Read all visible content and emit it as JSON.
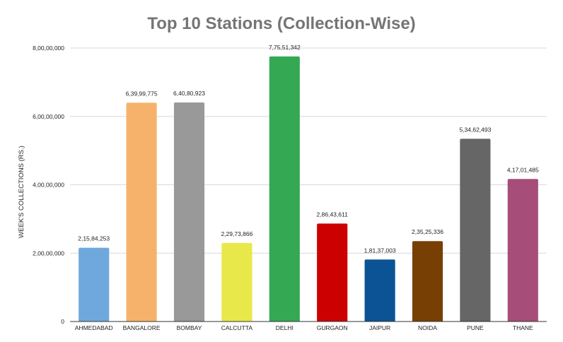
{
  "chart_data": {
    "type": "bar",
    "title": "Top 10 Stations (Collection-Wise)",
    "xlabel": "",
    "ylabel": "WEEK'S COLLECTIONS (RS.)",
    "ylim": [
      0,
      80000000
    ],
    "yticks": [
      0,
      20000000,
      40000000,
      60000000,
      80000000
    ],
    "ytick_labels": [
      "0",
      "2,00,00,000",
      "4,00,00,000",
      "6,00,00,000",
      "8,00,00,000"
    ],
    "grid": true,
    "legend": "none",
    "categories": [
      "AHMEDABAD",
      "BANGALORE",
      "BOMBAY",
      "CALCUTTA",
      "DELHI",
      "GURGAON",
      "JAIPUR",
      "NOIDA",
      "PUNE",
      "THANE"
    ],
    "values": [
      21584253,
      63999775,
      64080923,
      22973866,
      77551342,
      28643611,
      18137003,
      23525336,
      53462493,
      41701485
    ],
    "value_labels": [
      "2,15,84,253",
      "6,39,99,775",
      "6,40,80,923",
      "2,29,73,866",
      "7,75,51,342",
      "2,86,43,611",
      "1,81,37,003",
      "2,35,25,336",
      "5,34,62,493",
      "4,17,01,485"
    ],
    "colors": [
      "#6fa8dc",
      "#f6b26b",
      "#999999",
      "#e8e84a",
      "#34a853",
      "#cc0000",
      "#0b5394",
      "#783f04",
      "#666666",
      "#a64d79"
    ]
  }
}
